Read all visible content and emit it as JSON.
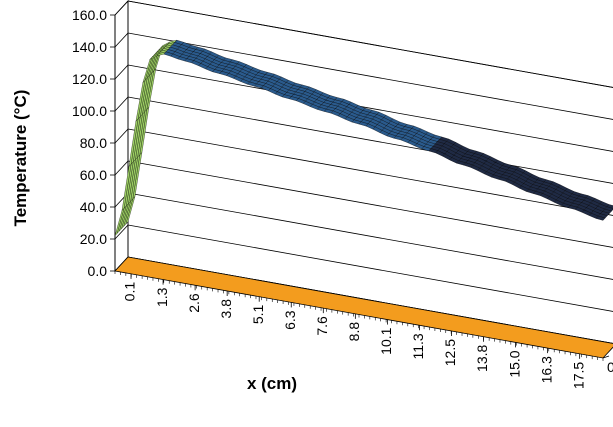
{
  "chart_data": {
    "type": "surface",
    "title": "",
    "xlabel": "x (cm)",
    "ylabel": "Temperature (°C)",
    "zlabel": "",
    "ylim": [
      0,
      160
    ],
    "yticks": [
      "0.0",
      "20.0",
      "40.0",
      "60.0",
      "80.0",
      "100.0",
      "120.0",
      "140.0",
      "160.0"
    ],
    "xticks": [
      "0.1",
      "1.3",
      "2.6",
      "3.8",
      "5.1",
      "6.3",
      "7.6",
      "8.8",
      "10.1",
      "11.3",
      "12.5",
      "13.8",
      "15.0",
      "16.3",
      "17.5"
    ],
    "depth_ticks": [
      "0"
    ],
    "grid": true,
    "legend": "none",
    "colors": {
      "floor": "#f39c1e",
      "surface_low": "#2a5a8c",
      "surface_mid": "#9ccf63",
      "surface_high": "#1f2a44",
      "mesh": "#000000",
      "gridline": "#000000"
    },
    "series": [
      {
        "x": [
          0.1,
          0.4,
          0.8,
          1.3,
          1.8,
          2.6,
          3.8,
          5.1,
          6.3,
          7.6,
          8.8,
          10.1,
          11.3,
          12.5,
          13.8,
          15.0,
          16.3,
          17.5
        ],
        "values": [
          22,
          40,
          95,
          136,
          141,
          139,
          135,
          131,
          127,
          123,
          119,
          114,
          110,
          105,
          100,
          95,
          90,
          86
        ]
      }
    ]
  }
}
